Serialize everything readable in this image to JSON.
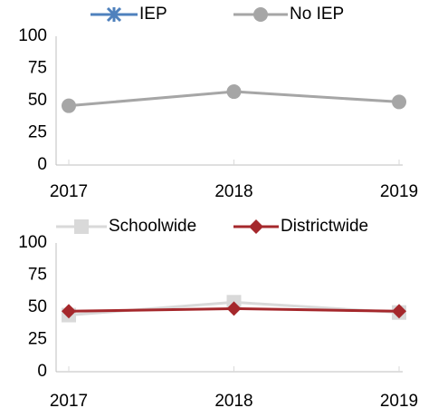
{
  "chart_data": [
    {
      "type": "line",
      "categories": [
        "2017",
        "2018",
        "2019"
      ],
      "series": [
        {
          "name": "IEP",
          "color": "#4f81bd",
          "marker": "star",
          "values": [
            null,
            null,
            null
          ]
        },
        {
          "name": "No IEP",
          "color": "#a6a6a6",
          "marker": "circle",
          "values": [
            46,
            57,
            49
          ]
        }
      ],
      "ylim": [
        0,
        100
      ],
      "yticks": [
        0,
        25,
        50,
        75,
        100
      ],
      "grid": false,
      "legend": "top"
    },
    {
      "type": "line",
      "categories": [
        "2017",
        "2018",
        "2019"
      ],
      "series": [
        {
          "name": "Schoolwide",
          "color": "#d9d9d9",
          "marker": "square",
          "values": [
            44,
            54,
            46
          ]
        },
        {
          "name": "Districtwide",
          "color": "#a5282c",
          "marker": "diamond",
          "values": [
            47,
            49,
            47
          ]
        }
      ],
      "ylim": [
        0,
        100
      ],
      "yticks": [
        0,
        25,
        50,
        75,
        100
      ],
      "grid": false,
      "legend": "top"
    }
  ]
}
